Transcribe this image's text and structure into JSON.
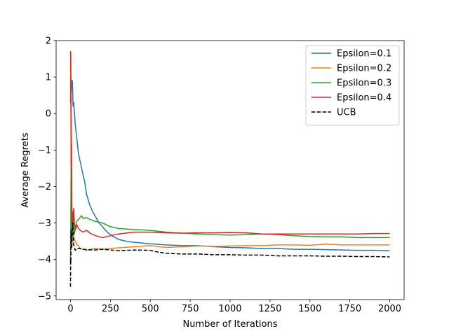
{
  "chart_data": {
    "type": "line",
    "title": "",
    "xlabel": "Number of Iterations",
    "ylabel": "Average Regrets",
    "xlim": [
      -90,
      2090
    ],
    "ylim": [
      -5.1,
      2.0
    ],
    "xticks": [
      0,
      250,
      500,
      750,
      1000,
      1250,
      1500,
      1750,
      2000
    ],
    "xtick_labels": [
      "0",
      "250",
      "500",
      "750",
      "1000",
      "1250",
      "1500",
      "1750",
      "2000"
    ],
    "yticks": [
      2,
      1,
      0,
      -1,
      -2,
      -3,
      -4,
      -5
    ],
    "ytick_labels": [
      "2",
      "1",
      "0",
      "−1",
      "−2",
      "−3",
      "−4",
      "−5"
    ],
    "grid": false,
    "legend_position": "top-right",
    "series": [
      {
        "name": "Epsilon=0.1",
        "color": "#1f77b4",
        "dash": "solid",
        "x": [
          0,
          2,
          5,
          8,
          12,
          16,
          20,
          25,
          30,
          35,
          40,
          50,
          60,
          70,
          80,
          90,
          100,
          120,
          140,
          160,
          180,
          200,
          230,
          260,
          300,
          350,
          400,
          450,
          500,
          600,
          700,
          800,
          900,
          1000,
          1100,
          1200,
          1300,
          1400,
          1500,
          1600,
          1700,
          1800,
          1900,
          2000
        ],
        "y": [
          0.3,
          1.0,
          0.6,
          0.9,
          0.9,
          0.2,
          0.3,
          0.0,
          -0.3,
          -0.5,
          -0.7,
          -1.1,
          -1.3,
          -1.5,
          -1.7,
          -1.9,
          -2.2,
          -2.5,
          -2.7,
          -2.85,
          -3.0,
          -3.1,
          -3.25,
          -3.35,
          -3.45,
          -3.5,
          -3.53,
          -3.55,
          -3.57,
          -3.6,
          -3.62,
          -3.62,
          -3.65,
          -3.67,
          -3.68,
          -3.7,
          -3.7,
          -3.72,
          -3.72,
          -3.73,
          -3.74,
          -3.75,
          -3.75,
          -3.76
        ]
      },
      {
        "name": "Epsilon=0.2",
        "color": "#ff7f0e",
        "dash": "solid",
        "x": [
          0,
          2,
          4,
          6,
          8,
          10,
          15,
          20,
          30,
          40,
          50,
          60,
          80,
          100,
          150,
          200,
          250,
          300,
          400,
          500,
          600,
          700,
          800,
          900,
          1000,
          1100,
          1200,
          1300,
          1400,
          1500,
          1600,
          1700,
          1800,
          1900,
          2000
        ],
        "y": [
          1.2,
          1.6,
          0.5,
          -0.8,
          -2.0,
          -3.6,
          -3.2,
          -3.4,
          -3.5,
          -3.6,
          -3.62,
          -3.7,
          -3.72,
          -3.75,
          -3.7,
          -3.72,
          -3.7,
          -3.68,
          -3.65,
          -3.62,
          -3.67,
          -3.65,
          -3.63,
          -3.64,
          -3.63,
          -3.62,
          -3.62,
          -3.6,
          -3.6,
          -3.61,
          -3.58,
          -3.6,
          -3.6,
          -3.6,
          -3.6
        ]
      },
      {
        "name": "Epsilon=0.3",
        "color": "#2ca02c",
        "dash": "solid",
        "x": [
          0,
          2,
          4,
          6,
          8,
          10,
          12,
          15,
          20,
          25,
          30,
          40,
          50,
          60,
          70,
          80,
          100,
          120,
          150,
          200,
          250,
          300,
          400,
          500,
          600,
          700,
          800,
          900,
          1000,
          1100,
          1200,
          1300,
          1400,
          1500,
          1600,
          1700,
          1800,
          1900,
          2000
        ],
        "y": [
          -4.1,
          -3.0,
          -1.2,
          -2.0,
          -3.5,
          -3.0,
          -2.8,
          -2.7,
          -3.2,
          -3.3,
          -3.1,
          -2.95,
          -2.9,
          -2.85,
          -2.8,
          -2.88,
          -2.85,
          -2.9,
          -2.95,
          -3.0,
          -3.1,
          -3.15,
          -3.18,
          -3.2,
          -3.25,
          -3.28,
          -3.3,
          -3.32,
          -3.33,
          -3.32,
          -3.3,
          -3.32,
          -3.35,
          -3.37,
          -3.38,
          -3.38,
          -3.4,
          -3.4,
          -3.4
        ]
      },
      {
        "name": "Epsilon=0.4",
        "color": "#d62728",
        "dash": "solid",
        "x": [
          0,
          1,
          2,
          3,
          4,
          6,
          8,
          10,
          12,
          15,
          18,
          20,
          25,
          30,
          40,
          50,
          60,
          80,
          100,
          130,
          160,
          200,
          250,
          300,
          400,
          500,
          600,
          700,
          800,
          900,
          1000,
          1100,
          1200,
          1300,
          1400,
          1500,
          1600,
          1700,
          1800,
          1900,
          2000
        ],
        "y": [
          1.6,
          1.7,
          1.0,
          -0.2,
          -1.4,
          -0.8,
          -2.5,
          -3.0,
          -2.9,
          -3.1,
          -2.7,
          -2.6,
          -3.0,
          -3.2,
          -3.05,
          -3.15,
          -3.2,
          -3.25,
          -3.2,
          -3.3,
          -3.35,
          -3.4,
          -3.35,
          -3.3,
          -3.25,
          -3.25,
          -3.27,
          -3.28,
          -3.27,
          -3.27,
          -3.26,
          -3.27,
          -3.3,
          -3.3,
          -3.3,
          -3.3,
          -3.3,
          -3.3,
          -3.3,
          -3.29,
          -3.29
        ]
      },
      {
        "name": "UCB",
        "color": "#000000",
        "dash": "dashed",
        "x": [
          0,
          1,
          2,
          3,
          4,
          6,
          8,
          10,
          15,
          20,
          30,
          40,
          60,
          80,
          100,
          150,
          200,
          250,
          300,
          400,
          500,
          550,
          600,
          700,
          800,
          900,
          1000,
          1100,
          1200,
          1300,
          1400,
          1500,
          1600,
          1700,
          1800,
          1900,
          2000
        ],
        "y": [
          -4.75,
          -4.0,
          -4.1,
          -3.5,
          -3.2,
          -3.5,
          -3.7,
          -3.3,
          -3.0,
          -3.6,
          -3.75,
          -3.7,
          -3.7,
          -3.72,
          -3.73,
          -3.74,
          -3.72,
          -3.74,
          -3.76,
          -3.74,
          -3.75,
          -3.8,
          -3.83,
          -3.85,
          -3.85,
          -3.87,
          -3.87,
          -3.88,
          -3.88,
          -3.9,
          -3.9,
          -3.9,
          -3.91,
          -3.91,
          -3.92,
          -3.92,
          -3.93
        ]
      }
    ]
  }
}
